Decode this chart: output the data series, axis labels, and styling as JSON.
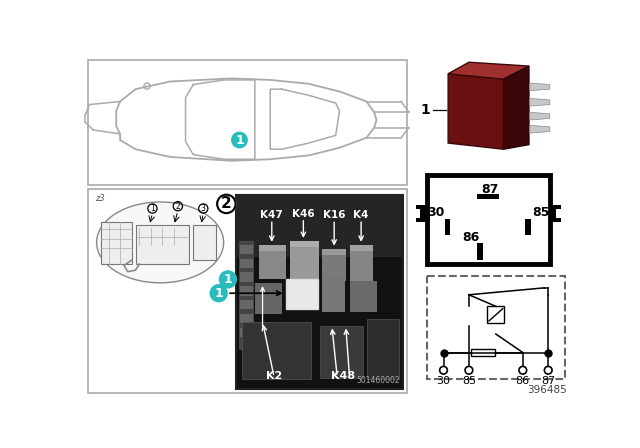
{
  "bg_color": "#ffffff",
  "title_number": "396485",
  "car_outline_color": "#aaaaaa",
  "relay_color_dark": "#6B1010",
  "relay_color_mid": "#8B2020",
  "relay_color_light": "#A03030",
  "teal_color": "#29BCBC",
  "pin_labels": [
    "30",
    "85",
    "86",
    "87"
  ],
  "relay_labels": [
    "K47",
    "K46",
    "K16",
    "K4",
    "K2",
    "K48"
  ],
  "fuse_image_number": "501460002",
  "panel_border": "#aaaaaa",
  "photo_bg": "#1a1a1a",
  "photo_border": "#333333"
}
